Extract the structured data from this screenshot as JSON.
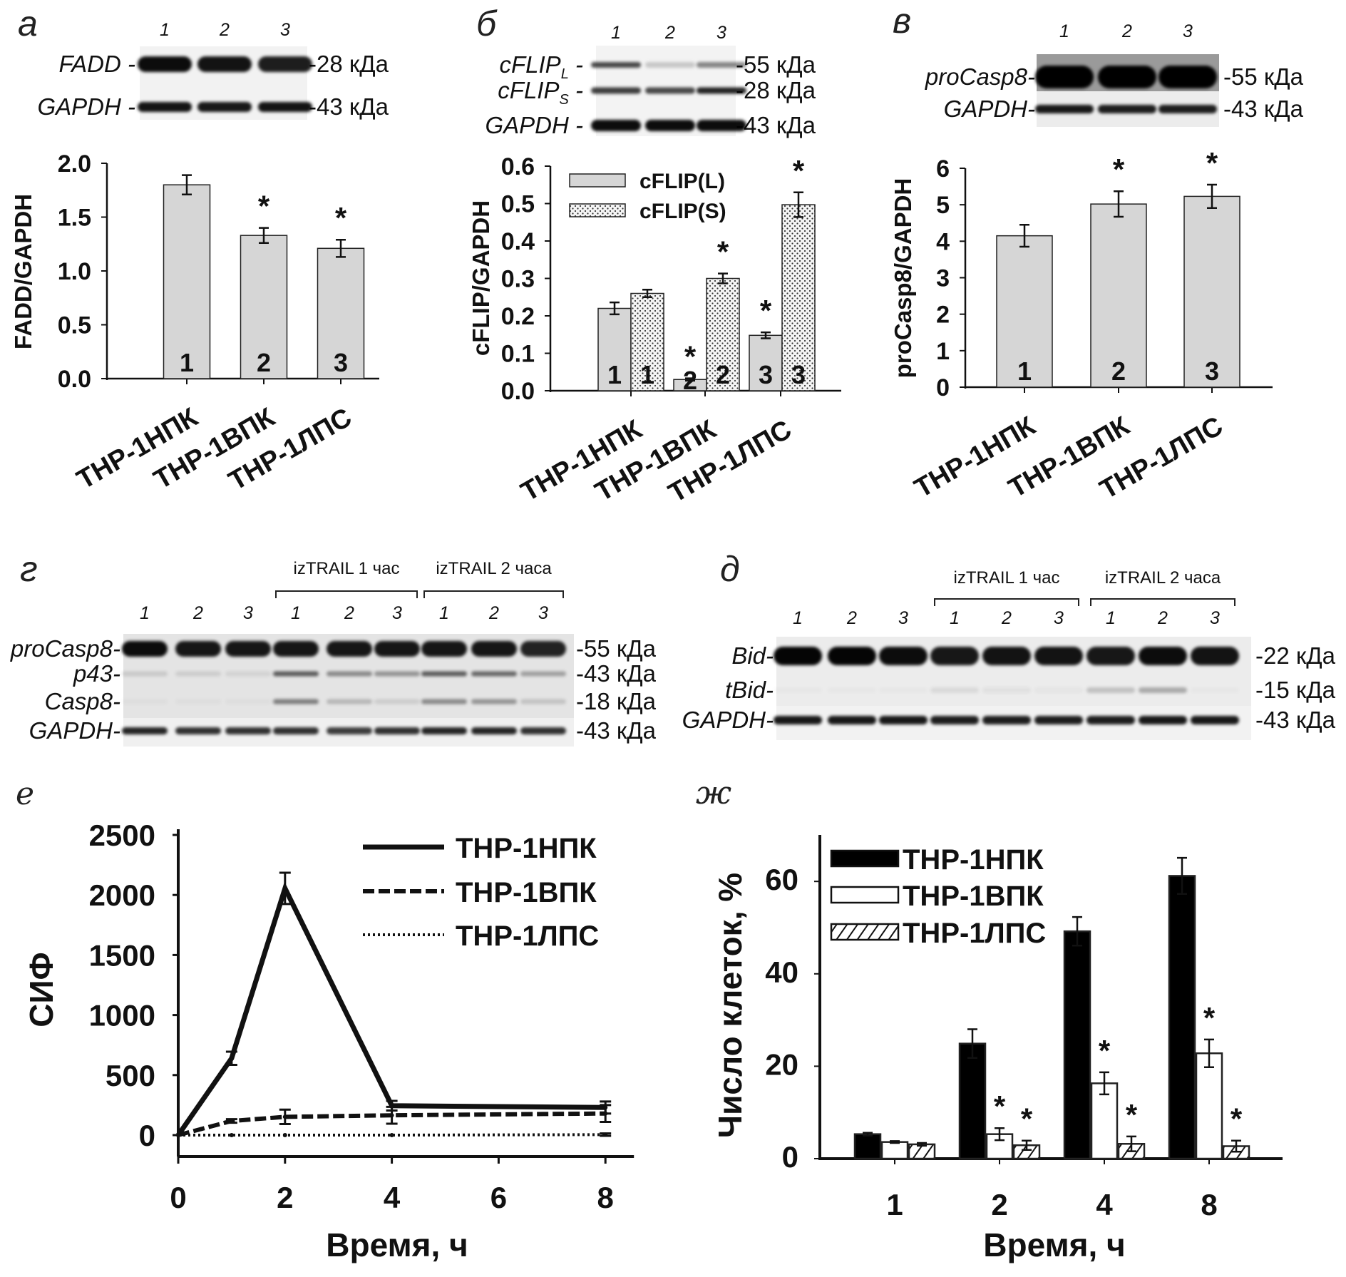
{
  "panel_labels": {
    "a": "а",
    "b": "б",
    "v": "в",
    "g": "г",
    "d": "д",
    "e": "е",
    "zh": "ж"
  },
  "blots": {
    "a": {
      "lanes": [
        "1",
        "2",
        "3"
      ],
      "rows": [
        {
          "name": "FADD -",
          "kda": "-28 кДа",
          "intensity": [
            0.95,
            0.92,
            0.88
          ]
        },
        {
          "name": "GAPDH -",
          "kda": "-43 кДа",
          "intensity": [
            0.92,
            0.9,
            0.92
          ]
        }
      ]
    },
    "b": {
      "lanes": [
        "1",
        "2",
        "3"
      ],
      "rows": [
        {
          "name": "cFLIP",
          "sub": "L",
          "suffix": " -",
          "kda": "-55 кДа",
          "intensity": [
            0.7,
            0.18,
            0.45
          ]
        },
        {
          "name": "cFLIP",
          "sub": "S",
          "suffix": " -",
          "kda": "-28 кДа",
          "intensity": [
            0.75,
            0.7,
            0.85
          ]
        },
        {
          "name": "GAPDH -",
          "kda": "-43 кДа",
          "intensity": [
            0.95,
            0.95,
            0.95
          ]
        }
      ]
    },
    "v": {
      "lanes": [
        "1",
        "2",
        "3"
      ],
      "rows": [
        {
          "name": "proCasp8-",
          "kda": "-55 кДа",
          "intensity": [
            1,
            1,
            1
          ]
        },
        {
          "name": "GAPDH-",
          "kda": "-43 кДа",
          "intensity": [
            0.9,
            0.88,
            0.88
          ]
        }
      ]
    },
    "g": {
      "lanes": [
        "1",
        "2",
        "3",
        "1",
        "2",
        "3",
        "1",
        "2",
        "3"
      ],
      "groups": [
        "izTRAIL 1 час",
        "izTRAIL 2 часа"
      ],
      "rows": [
        {
          "name": "proCasp8-",
          "kda": "-55 кДа",
          "intensity": [
            0.95,
            0.9,
            0.9,
            0.9,
            0.9,
            0.9,
            0.9,
            0.9,
            0.85
          ]
        },
        {
          "name": "p43-",
          "kda": "-43 кДа",
          "intensity": [
            0.12,
            0.1,
            0.08,
            0.6,
            0.4,
            0.35,
            0.6,
            0.55,
            0.3
          ]
        },
        {
          "name": "Casp8-",
          "kda": "-18 кДа",
          "intensity": [
            0.03,
            0.03,
            0.03,
            0.45,
            0.2,
            0.1,
            0.4,
            0.35,
            0.15
          ]
        },
        {
          "name": "GAPDH-",
          "kda": "-43 кДа",
          "intensity": [
            0.85,
            0.8,
            0.8,
            0.8,
            0.75,
            0.8,
            0.85,
            0.85,
            0.8
          ]
        }
      ]
    },
    "d": {
      "lanes": [
        "1",
        "2",
        "3",
        "1",
        "2",
        "3",
        "1",
        "2",
        "3"
      ],
      "groups": [
        "izTRAIL 1 час",
        "izTRAIL 2 часа"
      ],
      "rows": [
        {
          "name": "Bid-",
          "kda": "-22 кДа",
          "intensity": [
            0.98,
            0.98,
            0.95,
            0.9,
            0.92,
            0.92,
            0.9,
            0.95,
            0.92
          ]
        },
        {
          "name": "tBid-",
          "kda": "-15 кДа",
          "intensity": [
            0.02,
            0.02,
            0.02,
            0.08,
            0.05,
            0.03,
            0.18,
            0.28,
            0.02
          ]
        },
        {
          "name": "GAPDH-",
          "kda": "-43 кДа",
          "intensity": [
            0.9,
            0.9,
            0.9,
            0.88,
            0.88,
            0.88,
            0.88,
            0.9,
            0.9
          ]
        }
      ]
    }
  },
  "chart_data": [
    {
      "id": "a",
      "type": "bar",
      "title": "",
      "xlabel": "",
      "ylabel": "FADD/GAPDH",
      "ylim": [
        0,
        2
      ],
      "yticks": [
        0,
        0.5,
        1,
        1.5,
        2
      ],
      "ytick_labels": [
        "0.0",
        "0.5",
        "1.0",
        "1.5",
        "2.0"
      ],
      "categories": [
        "THP-1НПК",
        "THP-1ВПК",
        "THP-1ЛПС"
      ],
      "series": [
        {
          "name": "FADD",
          "values": [
            1.8,
            1.33,
            1.21
          ],
          "errors": [
            0.09,
            0.07,
            0.08
          ],
          "bar_labels": [
            "1",
            "2",
            "3"
          ],
          "significant": [
            false,
            true,
            true
          ]
        }
      ],
      "sig_marker": "*"
    },
    {
      "id": "b",
      "type": "bar",
      "title": "",
      "xlabel": "",
      "ylabel": "cFLIP/GAPDH",
      "ylim": [
        0,
        0.6
      ],
      "yticks": [
        0,
        0.1,
        0.2,
        0.3,
        0.4,
        0.5,
        0.6
      ],
      "ytick_labels": [
        "0.0",
        "0.1",
        "0.2",
        "0.3",
        "0.4",
        "0.5",
        "0.6"
      ],
      "categories": [
        "THP-1НПК",
        "THP-1ВПК",
        "THP-1ЛПС"
      ],
      "series": [
        {
          "name": "cFLIP(L)",
          "values": [
            0.22,
            0.03,
            0.148
          ],
          "errors": [
            0.016,
            0.003,
            0.008
          ],
          "bar_labels": [
            "1",
            "2",
            "3"
          ],
          "significant": [
            false,
            true,
            true
          ]
        },
        {
          "name": "cFLIP(S)",
          "values": [
            0.26,
            0.3,
            0.497
          ],
          "errors": [
            0.01,
            0.013,
            0.033
          ],
          "bar_labels": [
            "1",
            "2",
            "3"
          ],
          "significant": [
            false,
            true,
            true
          ]
        }
      ],
      "legend": "top-left",
      "sig_marker": "*"
    },
    {
      "id": "v",
      "type": "bar",
      "title": "",
      "xlabel": "",
      "ylabel": "proCasp8/GAPDH",
      "ylim": [
        0,
        6
      ],
      "yticks": [
        0,
        1,
        2,
        3,
        4,
        5,
        6
      ],
      "ytick_labels": [
        "0",
        "1",
        "2",
        "3",
        "4",
        "5",
        "6"
      ],
      "categories": [
        "THP-1НПК",
        "THP-1ВПК",
        "THP-1ЛПС"
      ],
      "series": [
        {
          "name": "proCasp8",
          "values": [
            4.15,
            5.02,
            5.23
          ],
          "errors": [
            0.3,
            0.35,
            0.32
          ],
          "bar_labels": [
            "1",
            "2",
            "3"
          ],
          "significant": [
            false,
            true,
            true
          ]
        }
      ],
      "sig_marker": "*"
    },
    {
      "id": "e",
      "type": "line",
      "title": "",
      "xlabel": "Время, ч",
      "ylabel": "СИФ",
      "xlim": [
        0,
        8
      ],
      "ylim": [
        0,
        2500
      ],
      "xticks": [
        0,
        2,
        4,
        6,
        8
      ],
      "xtick_labels": [
        "0",
        "2",
        "4",
        "6",
        "8"
      ],
      "yticks": [
        0,
        500,
        1000,
        1500,
        2000,
        2500
      ],
      "ytick_labels": [
        "0",
        "500",
        "1000",
        "1500",
        "2000",
        "2500"
      ],
      "x": [
        0,
        1,
        2,
        4,
        8
      ],
      "series": [
        {
          "name": "THP-1НПК",
          "style": "solid",
          "values": [
            0,
            640,
            2055,
            245,
            230
          ],
          "errors": [
            0,
            55,
            130,
            40,
            50
          ]
        },
        {
          "name": "THP-1ВПК",
          "style": "dashed",
          "values": [
            0,
            118,
            152,
            165,
            180
          ],
          "errors": [
            0,
            15,
            60,
            70,
            70
          ]
        },
        {
          "name": "THP-1ЛПС",
          "style": "dotted",
          "values": [
            0,
            0,
            0,
            0,
            4
          ],
          "errors": [
            0,
            0,
            0,
            0,
            10
          ]
        }
      ],
      "legend": "top-right"
    },
    {
      "id": "zh",
      "type": "bar",
      "title": "",
      "xlabel": "Время, ч",
      "ylabel": "Число клеток, %",
      "ylim": [
        0,
        68
      ],
      "yticks": [
        0,
        20,
        40,
        60
      ],
      "ytick_labels": [
        "0",
        "20",
        "40",
        "60"
      ],
      "categories": [
        "1",
        "2",
        "4",
        "8"
      ],
      "series": [
        {
          "name": "THP-1НПК",
          "fill": "#000000",
          "values": [
            5.3,
            24.9,
            49.2,
            61.2
          ],
          "errors": [
            0.3,
            3.1,
            3.1,
            3.9
          ],
          "significant": [
            false,
            false,
            false,
            false
          ]
        },
        {
          "name": "THP-1ВПК",
          "fill": "#ffffff",
          "values": [
            3.6,
            5.3,
            16.3,
            22.8
          ],
          "errors": [
            0.2,
            1.3,
            2.4,
            3.0
          ],
          "significant": [
            false,
            true,
            true,
            true
          ]
        },
        {
          "name": "THP-1ЛПС",
          "fill": "hatch",
          "values": [
            3.1,
            2.9,
            3.2,
            2.7
          ],
          "errors": [
            0.3,
            1.0,
            1.6,
            1.2
          ],
          "significant": [
            false,
            true,
            true,
            true
          ]
        }
      ],
      "legend": "top-left",
      "sig_marker": "*"
    }
  ]
}
